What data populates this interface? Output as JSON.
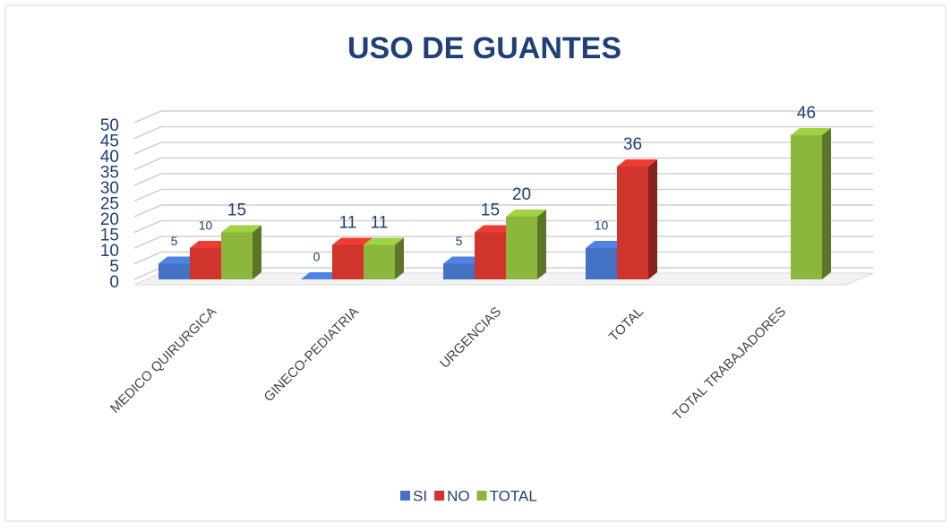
{
  "chart_data": {
    "type": "bar3d",
    "title": "USO DE GUANTES",
    "categories": [
      "MEDICO QUIRURGICA",
      "GINECO-PEDIATRIA",
      "URGENCIAS",
      "TOTAL",
      "TOTAL TRABAJADORES"
    ],
    "series": [
      {
        "name": "SI",
        "color": "#4472c4",
        "values": [
          5,
          0,
          5,
          10,
          null
        ]
      },
      {
        "name": "NO",
        "color": "#d0342c",
        "values": [
          10,
          11,
          15,
          36,
          null
        ]
      },
      {
        "name": "TOTAL",
        "color": "#8cb63c",
        "values": [
          15,
          11,
          20,
          null,
          46
        ]
      }
    ],
    "ylim": [
      0,
      50
    ],
    "yticks": [
      0,
      5,
      10,
      15,
      20,
      25,
      30,
      35,
      40,
      45,
      50
    ],
    "grid": true,
    "legend": "bottom"
  }
}
